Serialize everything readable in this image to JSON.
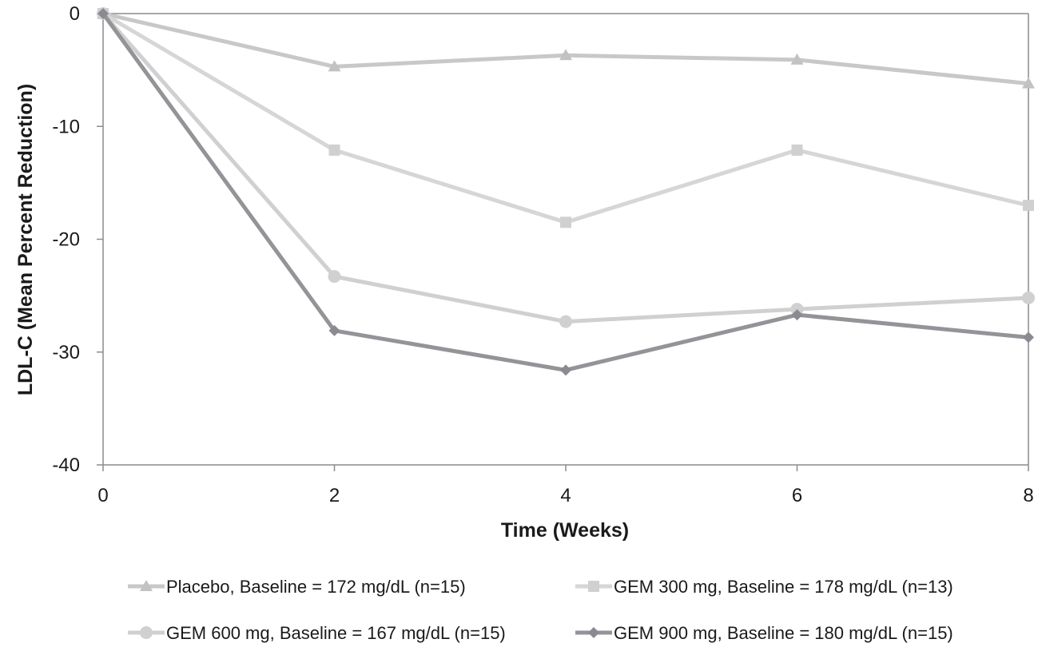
{
  "chart_data": {
    "type": "line",
    "xlabel": "Time (Weeks)",
    "ylabel": "LDL-C (Mean Percent Reduction)",
    "x": [
      0,
      2,
      4,
      6,
      8
    ],
    "xlim": [
      0,
      8
    ],
    "ylim": [
      -40,
      0
    ],
    "xticks": [
      "0",
      "2",
      "4",
      "6",
      "8"
    ],
    "yticks": [
      "0",
      "-10",
      "-20",
      "-30",
      "-40"
    ],
    "grid": false,
    "legend_position": "bottom",
    "series": [
      {
        "name": "Placebo, Baseline = 172 mg/dL (n=15)",
        "values": [
          0,
          -4.7,
          -3.7,
          -4.1,
          -6.2
        ],
        "marker": "triangle",
        "color": "#c8c8c8"
      },
      {
        "name": "GEM 300 mg, Baseline = 178 mg/dL (n=13)",
        "values": [
          0,
          -12.1,
          -18.5,
          -12.1,
          -17.0
        ],
        "marker": "square",
        "color": "#d6d6d6"
      },
      {
        "name": "GEM 600 mg, Baseline = 167 mg/dL (n=15)",
        "values": [
          0,
          -23.3,
          -27.3,
          -26.2,
          -25.2
        ],
        "marker": "circle",
        "color": "#d0d0d0"
      },
      {
        "name": "GEM 900 mg, Baseline = 180 mg/dL (n=15)",
        "values": [
          0,
          -28.1,
          -31.6,
          -26.7,
          -28.7
        ],
        "marker": "diamond",
        "color": "#939398"
      }
    ]
  }
}
